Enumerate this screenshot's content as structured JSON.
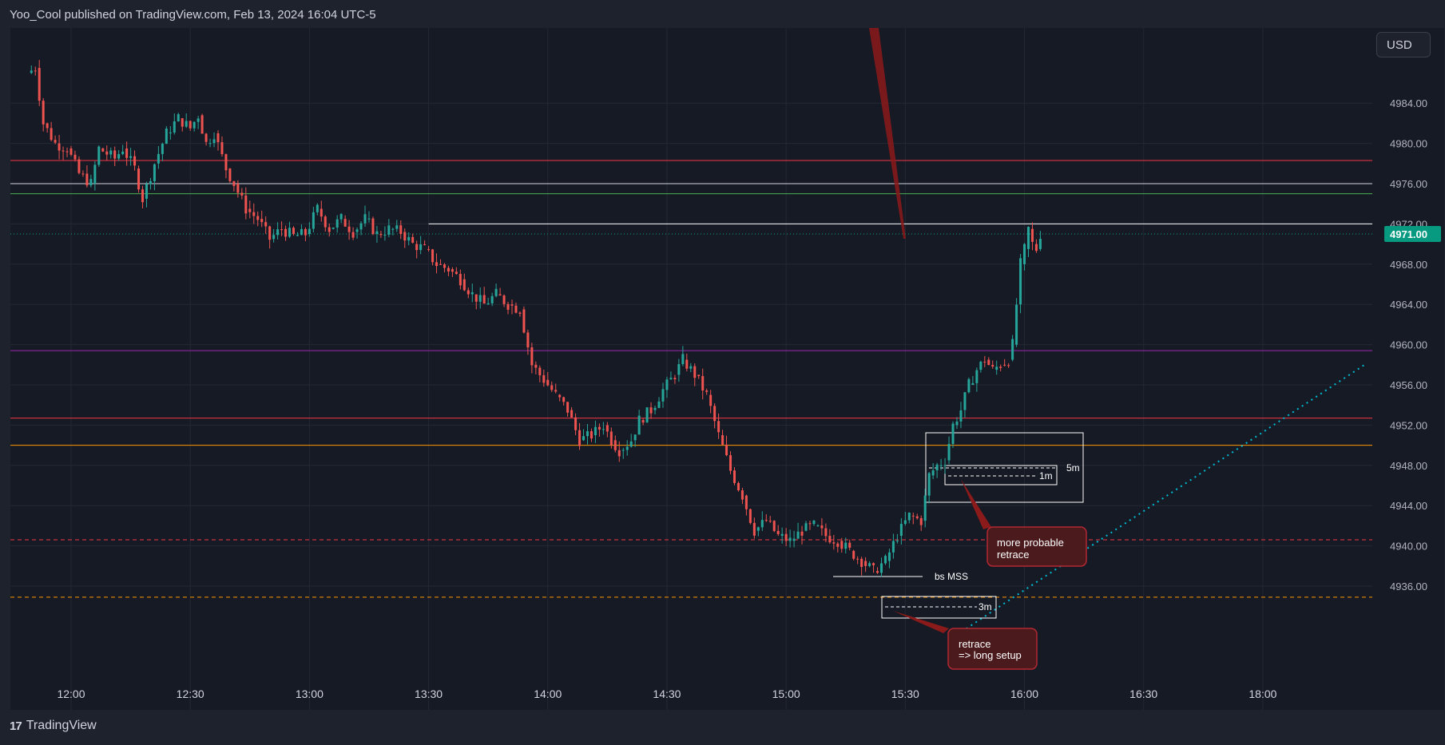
{
  "header": {
    "published": "Yoo_Cool published on TradingView.com, Feb 13, 2024 16:04 UTC-5"
  },
  "currency_button": "USD",
  "footer": {
    "brand": "TradingView",
    "logo_glyph": "17"
  },
  "colors": {
    "background": "#161a25",
    "up": "#26a69a",
    "down": "#ef5350",
    "grid": "#242834",
    "price_tag": "#089981"
  },
  "chart_data": {
    "type": "candlestick",
    "symbol_price_last": "4971.00",
    "ylim": [
      4934.5,
      4992.0
    ],
    "y_ticks": [
      4936,
      4940,
      4944,
      4948,
      4952,
      4956,
      4960,
      4964,
      4968,
      4972,
      4976,
      4980,
      4984
    ],
    "y_tick_labels": [
      "4936.00",
      "4940.00",
      "4944.00",
      "4948.00",
      "4952.00",
      "4956.00",
      "4960.00",
      "4964.00",
      "4968.00",
      "4972.00",
      "4976.00",
      "4980.00",
      "4984.00"
    ],
    "x_ticks": [
      {
        "label": "12:00",
        "minutes": 720
      },
      {
        "label": "12:30",
        "minutes": 750
      },
      {
        "label": "13:00",
        "minutes": 780
      },
      {
        "label": "13:30",
        "minutes": 810
      },
      {
        "label": "14:00",
        "minutes": 840
      },
      {
        "label": "14:30",
        "minutes": 870
      },
      {
        "label": "15:00",
        "minutes": 900
      },
      {
        "label": "15:30",
        "minutes": 930
      },
      {
        "label": "16:00",
        "minutes": 960
      },
      {
        "label": "16:30",
        "minutes": 990
      },
      {
        "label": "18:00",
        "minutes": 1020
      }
    ],
    "price_path": [
      [
        709,
        4987.0
      ],
      [
        711,
        4987.5
      ],
      [
        713,
        4982.0
      ],
      [
        716,
        4980.0
      ],
      [
        719,
        4979.5
      ],
      [
        722,
        4977.0
      ],
      [
        725,
        4976.0
      ],
      [
        727,
        4979.5
      ],
      [
        731,
        4978.5
      ],
      [
        733,
        4979.5
      ],
      [
        736,
        4977.5
      ],
      [
        738,
        4974.5
      ],
      [
        741,
        4978.0
      ],
      [
        744,
        4981.0
      ],
      [
        747,
        4982.5
      ],
      [
        750,
        4981.5
      ],
      [
        752,
        4982.8
      ],
      [
        754,
        4980.0
      ],
      [
        756,
        4981.0
      ],
      [
        759,
        4977.5
      ],
      [
        761,
        4976.0
      ],
      [
        764,
        4973.5
      ],
      [
        767,
        4972.5
      ],
      [
        770,
        4970.5
      ],
      [
        773,
        4971.5
      ],
      [
        776,
        4970.8
      ],
      [
        779,
        4971.0
      ],
      [
        782,
        4973.5
      ],
      [
        785,
        4971.5
      ],
      [
        788,
        4972.5
      ],
      [
        791,
        4971.2
      ],
      [
        794,
        4972.5
      ],
      [
        797,
        4971.0
      ],
      [
        800,
        4971.5
      ],
      [
        803,
        4971.2
      ],
      [
        806,
        4970.0
      ],
      [
        809,
        4969.5
      ],
      [
        812,
        4968.0
      ],
      [
        815,
        4967.5
      ],
      [
        818,
        4966.5
      ],
      [
        821,
        4965.0
      ],
      [
        824,
        4964.0
      ],
      [
        827,
        4965.0
      ],
      [
        830,
        4964.0
      ],
      [
        833,
        4963.5
      ],
      [
        836,
        4958.0
      ],
      [
        839,
        4956.5
      ],
      [
        842,
        4955.0
      ],
      [
        845,
        4953.5
      ],
      [
        848,
        4950.5
      ],
      [
        851,
        4951.0
      ],
      [
        854,
        4952.0
      ],
      [
        856,
        4950.5
      ],
      [
        858,
        4949.5
      ],
      [
        861,
        4950.5
      ],
      [
        863,
        4952.5
      ],
      [
        866,
        4953.5
      ],
      [
        869,
        4955.5
      ],
      [
        872,
        4957.0
      ],
      [
        874,
        4958.5
      ],
      [
        877,
        4957.0
      ],
      [
        880,
        4955.0
      ],
      [
        883,
        4951.0
      ],
      [
        886,
        4947.5
      ],
      [
        889,
        4945.0
      ],
      [
        892,
        4941.5
      ],
      [
        895,
        4942.5
      ],
      [
        898,
        4941.0
      ],
      [
        901,
        4940.5
      ],
      [
        904,
        4941.5
      ],
      [
        907,
        4942.0
      ],
      [
        910,
        4941.0
      ],
      [
        913,
        4940.5
      ],
      [
        916,
        4939.5
      ],
      [
        919,
        4938.5
      ],
      [
        922,
        4937.5
      ],
      [
        925,
        4938.5
      ],
      [
        928,
        4941.0
      ],
      [
        931,
        4943.0
      ],
      [
        934,
        4942.5
      ],
      [
        936,
        4947.0
      ],
      [
        938,
        4948.0
      ],
      [
        940,
        4948.5
      ],
      [
        942,
        4952.0
      ],
      [
        944,
        4953.5
      ],
      [
        946,
        4956.0
      ],
      [
        948,
        4957.5
      ],
      [
        950,
        4958.5
      ],
      [
        952,
        4957.5
      ],
      [
        954,
        4958.0
      ],
      [
        956,
        4958.5
      ],
      [
        957,
        4960.0
      ],
      [
        958,
        4964.0
      ],
      [
        959,
        4968.0
      ],
      [
        960,
        4969.5
      ],
      [
        961,
        4971.5
      ],
      [
        962,
        4970.0
      ],
      [
        963,
        4969.5
      ],
      [
        964,
        4971.0
      ]
    ],
    "horizontal_levels": [
      {
        "price": 4978.3,
        "color": "#f23645",
        "style": "solid"
      },
      {
        "price": 4976.0,
        "color": "#d1d4dc",
        "style": "solid"
      },
      {
        "price": 4975.0,
        "color": "#4caf50",
        "style": "solid"
      },
      {
        "price": 4972.0,
        "color": "#ffffff",
        "style": "solid",
        "from_minutes": 810
      },
      {
        "price": 4971.0,
        "color": "#089981",
        "style": "dotted"
      },
      {
        "price": 4959.4,
        "color": "#9c27b0",
        "style": "solid"
      },
      {
        "price": 4952.7,
        "color": "#f23645",
        "style": "solid"
      },
      {
        "price": 4950.0,
        "color": "#ff9800",
        "style": "solid"
      },
      {
        "price": 4940.6,
        "color": "#f23645",
        "style": "dashed"
      },
      {
        "price": 4934.9,
        "color": "#ff9800",
        "style": "dashed"
      }
    ],
    "annotations": [
      {
        "text": "bs MSS"
      },
      {
        "text": "3m"
      },
      {
        "text": "5m"
      },
      {
        "text": "1m"
      },
      {
        "text_lines": [
          "more probable",
          "retrace"
        ]
      },
      {
        "text_lines": [
          "retrace",
          "=> long setup"
        ]
      }
    ]
  }
}
